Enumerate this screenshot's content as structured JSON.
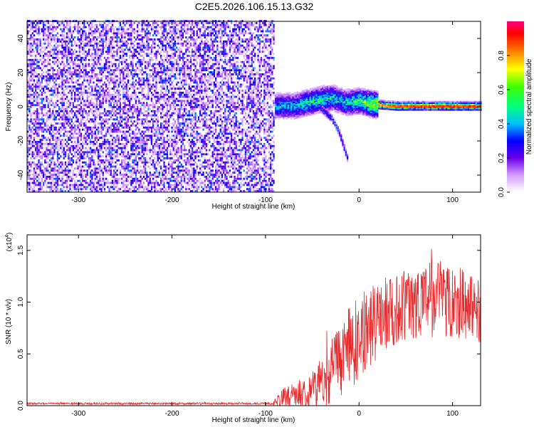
{
  "title": "C2E5.2026.106.15.13.G32",
  "chart_data": [
    {
      "type": "heatmap",
      "name": "spectrogram",
      "xlabel": "Height of straight line (km)",
      "ylabel": "Frequency (Hz)",
      "xlim": [
        -355,
        130
      ],
      "ylim": [
        -50,
        50
      ],
      "xticks": [
        -300,
        -200,
        -100,
        0,
        100
      ],
      "xtick_labels": [
        "-300",
        "-200",
        "-100",
        "0",
        "100"
      ],
      "yticks": [
        -40,
        -20,
        0,
        20,
        40
      ],
      "ytick_labels": [
        "-40",
        "-20",
        "0",
        "20",
        "40"
      ],
      "noise_region": {
        "x_from": -355,
        "x_to": -92,
        "amplitude": 0.13
      },
      "signal_track": [
        {
          "x": -90,
          "freq": 0,
          "amp": 0.45
        },
        {
          "x": -70,
          "freq": 0,
          "amp": 0.45
        },
        {
          "x": -55,
          "freq": 2,
          "amp": 0.55
        },
        {
          "x": -40,
          "freq": 4,
          "amp": 0.55
        },
        {
          "x": -30,
          "freq": 5,
          "amp": 0.5
        },
        {
          "x": -15,
          "freq": 2,
          "amp": 0.5
        },
        {
          "x": 0,
          "freq": 3,
          "amp": 0.6
        },
        {
          "x": 15,
          "freq": 1,
          "amp": 0.8
        },
        {
          "x": 40,
          "freq": 0,
          "amp": 0.95
        },
        {
          "x": 130,
          "freq": 0,
          "amp": 0.95
        }
      ],
      "branch": [
        {
          "x": -40,
          "freq": -2
        },
        {
          "x": -30,
          "freq": -7
        },
        {
          "x": -22,
          "freq": -15
        },
        {
          "x": -15,
          "freq": -27
        },
        {
          "x": -12,
          "freq": -32
        }
      ],
      "colorbar": {
        "label": "Normalized spectral amplitude",
        "range": [
          0,
          1
        ],
        "ticks": [
          0.0,
          0.2,
          0.4,
          0.6,
          0.8
        ],
        "tick_labels": [
          "0.0",
          "0.2",
          "0.4",
          "0.6",
          "0.8"
        ]
      }
    },
    {
      "type": "line",
      "name": "snr",
      "xlabel": "Height of straight line (km)",
      "ylabel": "SNR (10 * v/v)",
      "exponent_label": "(x10",
      "exponent_power": "4",
      "exponent_close": ")",
      "xlim": [
        -355,
        130
      ],
      "ylim": [
        0,
        1.65
      ],
      "xticks": [
        -300,
        -200,
        -100,
        0,
        100
      ],
      "xtick_labels": [
        "-300",
        "-200",
        "-100",
        "0",
        "100"
      ],
      "yticks": [
        0.0,
        0.5,
        1.0,
        1.5
      ],
      "ytick_labels": [
        "0.0",
        "0.5",
        "1.0",
        "1.5"
      ],
      "line_color": "#e8282b",
      "envelope": [
        {
          "x": -355,
          "mean": 0.02,
          "spread": 0.01
        },
        {
          "x": -92,
          "mean": 0.02,
          "spread": 0.01
        },
        {
          "x": -85,
          "mean": 0.07,
          "spread": 0.08
        },
        {
          "x": -60,
          "mean": 0.12,
          "spread": 0.15
        },
        {
          "x": -40,
          "mean": 0.2,
          "spread": 0.25
        },
        {
          "x": -25,
          "mean": 0.4,
          "spread": 0.35
        },
        {
          "x": -10,
          "mean": 0.55,
          "spread": 0.4
        },
        {
          "x": 10,
          "mean": 0.75,
          "spread": 0.4
        },
        {
          "x": 30,
          "mean": 0.9,
          "spread": 0.35
        },
        {
          "x": 60,
          "mean": 1.0,
          "spread": 0.35
        },
        {
          "x": 90,
          "mean": 1.05,
          "spread": 0.4
        },
        {
          "x": 110,
          "mean": 1.0,
          "spread": 0.35
        },
        {
          "x": 130,
          "mean": 0.9,
          "spread": 0.3
        }
      ]
    }
  ]
}
